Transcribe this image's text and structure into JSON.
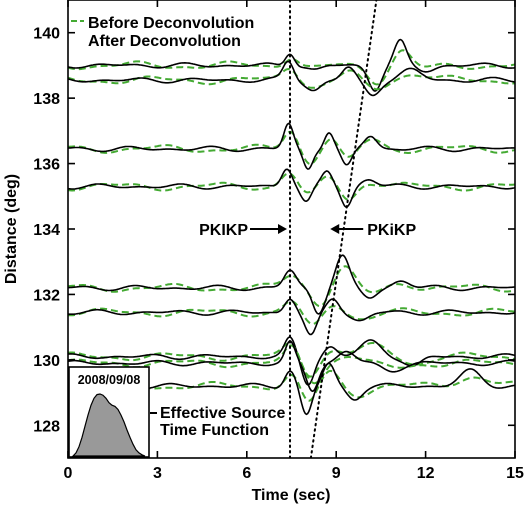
{
  "chart_data": {
    "type": "line",
    "title": "",
    "xlabel": "Time (sec)",
    "ylabel": "Distance (deg)",
    "xlim": [
      0,
      15
    ],
    "ylim": [
      127.0,
      141.0
    ],
    "xticks": [
      0,
      3,
      6,
      9,
      12,
      15
    ],
    "yticks": [
      128,
      130,
      132,
      134,
      136,
      138,
      140
    ],
    "legend": {
      "placement": "top-left",
      "entries": [
        {
          "label": "Before Deconvolution",
          "color": "#44aa33",
          "style": "dashed"
        },
        {
          "label": "After Deconvolution",
          "color": "#000000",
          "style": "solid"
        }
      ]
    },
    "phase_lines": [
      {
        "name": "PKIKP",
        "x": [
          7.45,
          7.45
        ],
        "y": [
          127.0,
          141.0
        ]
      },
      {
        "name": "PKiKP",
        "x": [
          8.15,
          10.35
        ],
        "y": [
          127.0,
          141.0
        ]
      }
    ],
    "annotations": {
      "pkikp": "PKIKP",
      "pkikp_xy": [
        7.45,
        134.0
      ],
      "pkikp_label": "PKiKP",
      "pkikp_label_xy": [
        8.9,
        134.0
      ],
      "source_title_line1": "Effective Source",
      "source_title_line2": "Time Function",
      "event_date": "2008/09/08"
    },
    "traces": [
      {
        "distance": 139.0,
        "amp": 0.75,
        "phases": [
          [
            7.45,
            0.55,
            0.22
          ],
          [
            8.3,
            -0.2,
            0.35
          ],
          [
            10.3,
            -0.95,
            0.3
          ],
          [
            11.15,
            0.95,
            0.28
          ],
          [
            12.0,
            -0.2,
            0.4
          ]
        ]
      },
      {
        "distance": 138.55,
        "amp": 0.75,
        "phases": [
          [
            7.4,
            0.75,
            0.25
          ],
          [
            8.25,
            -0.4,
            0.35
          ],
          [
            9.4,
            0.5,
            0.3
          ],
          [
            10.2,
            -0.6,
            0.35
          ],
          [
            11.5,
            0.4,
            0.5
          ]
        ]
      },
      {
        "distance": 136.45,
        "amp": 0.75,
        "phases": [
          [
            7.4,
            1.0,
            0.22
          ],
          [
            8.05,
            -0.8,
            0.22
          ],
          [
            8.75,
            0.7,
            0.22
          ],
          [
            9.35,
            -0.75,
            0.25
          ],
          [
            10.15,
            0.55,
            0.3
          ]
        ]
      },
      {
        "distance": 135.3,
        "amp": 0.75,
        "phases": [
          [
            7.35,
            0.8,
            0.25
          ],
          [
            8.0,
            -0.65,
            0.25
          ],
          [
            8.7,
            0.6,
            0.25
          ],
          [
            9.35,
            -0.8,
            0.25
          ],
          [
            10.1,
            0.3,
            0.35
          ]
        ]
      },
      {
        "distance": 132.2,
        "amp": 0.75,
        "phases": [
          [
            7.45,
            0.7,
            0.28
          ],
          [
            8.4,
            -1.0,
            0.28
          ],
          [
            9.2,
            1.3,
            0.32
          ],
          [
            10.1,
            -0.4,
            0.35
          ],
          [
            11.2,
            0.3,
            0.4
          ]
        ]
      },
      {
        "distance": 131.45,
        "amp": 0.75,
        "phases": [
          [
            7.45,
            0.6,
            0.25
          ],
          [
            8.15,
            -1.0,
            0.28
          ],
          [
            8.9,
            0.6,
            0.3
          ],
          [
            9.8,
            -0.35,
            0.4
          ]
        ]
      },
      {
        "distance": 130.1,
        "amp": 0.75,
        "phases": [
          [
            7.45,
            0.7,
            0.25
          ],
          [
            8.05,
            -1.1,
            0.28
          ],
          [
            8.8,
            0.4,
            0.3
          ],
          [
            10.15,
            0.6,
            0.5
          ],
          [
            11.6,
            -0.4,
            0.4
          ]
        ]
      },
      {
        "distance": 129.9,
        "amp": 0.75,
        "phases": [
          [
            7.45,
            0.8,
            0.22
          ],
          [
            8.2,
            -1.1,
            0.28
          ],
          [
            9.35,
            0.5,
            0.4
          ],
          [
            10.8,
            -0.3,
            0.5
          ]
        ]
      },
      {
        "distance": 129.2,
        "amp": 0.75,
        "phases": [
          [
            7.45,
            0.65,
            0.25
          ],
          [
            8.0,
            -1.2,
            0.25
          ],
          [
            8.75,
            0.9,
            0.28
          ],
          [
            9.6,
            -0.5,
            0.35
          ],
          [
            13.5,
            0.6,
            0.5
          ]
        ]
      }
    ],
    "source_function": {
      "t": [
        0,
        0.1,
        0.2,
        0.3,
        0.4,
        0.5,
        0.6,
        0.7,
        0.8,
        0.9,
        1.0,
        1.1,
        1.2,
        1.3,
        1.4,
        1.5,
        1.6,
        1.7,
        1.8,
        1.9,
        2.0,
        2.1,
        2.2,
        2.3,
        2.4
      ],
      "a": [
        0,
        0.05,
        0.15,
        0.3,
        0.48,
        0.66,
        0.82,
        0.93,
        0.99,
        1.0,
        0.98,
        0.93,
        0.86,
        0.82,
        0.8,
        0.75,
        0.66,
        0.55,
        0.42,
        0.3,
        0.19,
        0.1,
        0.05,
        0.02,
        0
      ]
    }
  }
}
